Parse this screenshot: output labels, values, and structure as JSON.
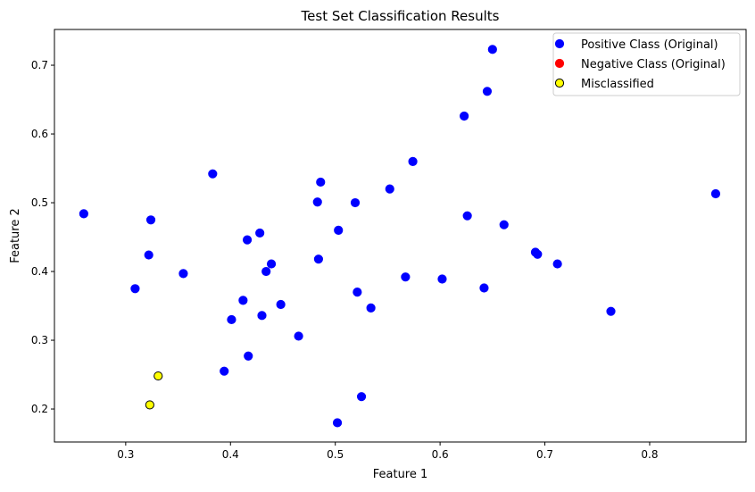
{
  "chart_data": {
    "type": "scatter",
    "title": "Test Set Classification Results",
    "xlabel": "Feature 1",
    "ylabel": "Feature 2",
    "xlim": [
      0.232,
      0.892
    ],
    "ylim": [
      0.152,
      0.752
    ],
    "xticks": [
      "0.3",
      "0.4",
      "0.5",
      "0.6",
      "0.7",
      "0.8"
    ],
    "xtick_values": [
      0.3,
      0.4,
      0.5,
      0.6,
      0.7,
      0.8
    ],
    "yticks": [
      "0.2",
      "0.3",
      "0.4",
      "0.5",
      "0.6",
      "0.7"
    ],
    "ytick_values": [
      0.2,
      0.3,
      0.4,
      0.5,
      0.6,
      0.7
    ],
    "grid": false,
    "legend_position": "top-right",
    "series": [
      {
        "name": "Positive Class (Original)",
        "color": "#0000ff",
        "edgecolor": "#0000ff",
        "points": [
          [
            0.26,
            0.484
          ],
          [
            0.309,
            0.375
          ],
          [
            0.322,
            0.424
          ],
          [
            0.324,
            0.475
          ],
          [
            0.355,
            0.397
          ],
          [
            0.383,
            0.542
          ],
          [
            0.394,
            0.255
          ],
          [
            0.401,
            0.33
          ],
          [
            0.412,
            0.358
          ],
          [
            0.416,
            0.446
          ],
          [
            0.417,
            0.277
          ],
          [
            0.428,
            0.456
          ],
          [
            0.43,
            0.336
          ],
          [
            0.434,
            0.4
          ],
          [
            0.439,
            0.411
          ],
          [
            0.448,
            0.352
          ],
          [
            0.465,
            0.306
          ],
          [
            0.483,
            0.501
          ],
          [
            0.484,
            0.418
          ],
          [
            0.486,
            0.53
          ],
          [
            0.502,
            0.18
          ],
          [
            0.503,
            0.46
          ],
          [
            0.519,
            0.5
          ],
          [
            0.521,
            0.37
          ],
          [
            0.525,
            0.218
          ],
          [
            0.534,
            0.347
          ],
          [
            0.552,
            0.52
          ],
          [
            0.567,
            0.392
          ],
          [
            0.574,
            0.56
          ],
          [
            0.602,
            0.389
          ],
          [
            0.623,
            0.626
          ],
          [
            0.626,
            0.481
          ],
          [
            0.642,
            0.376
          ],
          [
            0.645,
            0.662
          ],
          [
            0.65,
            0.723
          ],
          [
            0.661,
            0.468
          ],
          [
            0.691,
            0.428
          ],
          [
            0.693,
            0.425
          ],
          [
            0.712,
            0.411
          ],
          [
            0.763,
            0.342
          ],
          [
            0.863,
            0.513
          ]
        ]
      },
      {
        "name": "Negative Class (Original)",
        "color": "#ff0000",
        "edgecolor": "#ff0000",
        "points": []
      },
      {
        "name": "Misclassified",
        "color": "#ffff00",
        "edgecolor": "#000000",
        "points": [
          [
            0.331,
            0.248
          ],
          [
            0.323,
            0.206
          ]
        ]
      }
    ]
  }
}
